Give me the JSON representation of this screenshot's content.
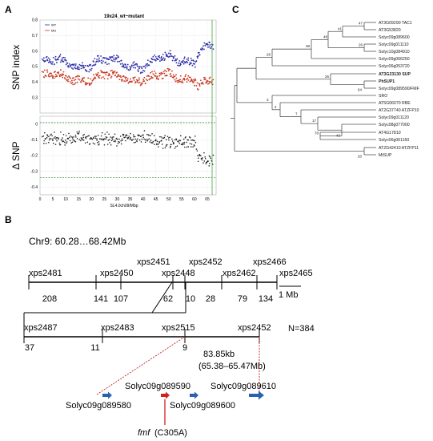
{
  "panels": {
    "a": "A",
    "b": "B",
    "c": "C"
  },
  "chart_data": {
    "type": "scatter",
    "title": "19x24_wt~mutant",
    "xlabel": "SL4.0ch09/Mbp",
    "xlim": [
      0,
      68.42
    ],
    "x_ticks": [
      "0",
      "5",
      "10",
      "15",
      "20",
      "25",
      "30",
      "35",
      "40",
      "45",
      "50",
      "55",
      "60",
      "65"
    ],
    "top": {
      "ylabel": "SNP index",
      "ylim": [
        0.2,
        0.8
      ],
      "y_ticks": [
        "0.8",
        "0.7",
        "0.6",
        "0.5",
        "0.4",
        "0.3"
      ],
      "legend": [
        "WT",
        "MU"
      ],
      "series_colors": [
        "#2a2aa8",
        "#c8341e"
      ]
    },
    "bottom": {
      "ylabel": "Δ SNP",
      "ylim": [
        -0.45,
        0.05
      ],
      "y_ticks": [
        "0",
        "-0.1",
        "-0.2",
        "-0.3",
        "-0.4"
      ],
      "threshold_lines": [
        0.01,
        -0.34
      ]
    }
  },
  "map": {
    "chr_label": "Chr9: 60.28…68.42Mb",
    "row1_markers": [
      "xps2481",
      "xps2450",
      "xps2451",
      "xps2448",
      "xps2452",
      "xps2462",
      "xps2466",
      "xps2465"
    ],
    "row1_counts": [
      "208",
      "141",
      "107",
      "62",
      "10",
      "28",
      "79",
      "134"
    ],
    "scale": "1 Mb",
    "row2_markers": [
      "xps2487",
      "xps2483",
      "xps2515",
      "xps2452"
    ],
    "row2_counts": [
      "37",
      "11",
      "9"
    ],
    "n_label": "N=384",
    "interval_kb": "83.85kb",
    "interval_mb": "(65.38–65.47Mb)",
    "genes": [
      "Solyc09g089580",
      "Solyc09g089590",
      "Solyc09g089600",
      "Solyc09g089610"
    ],
    "fmf_label": "fmf",
    "fmf_mutation": "(C305A)",
    "colors": {
      "arrow": "#2a62b0",
      "fmf": "#d22020",
      "guide": "#c0202a"
    }
  },
  "tree": {
    "leaves": [
      {
        "name": "AT3G09290_TAC1",
        "label": "AT3G09290 TAC1",
        "style": "normal"
      },
      {
        "name": "AT3G53820",
        "label": "AT3G53820",
        "style": "normal"
      },
      {
        "name": "Solyc09g089600",
        "label": "Solyc09g089600",
        "style": "normal"
      },
      {
        "name": "Solyc09g011110",
        "label": "Solyc09g011110",
        "style": "normal"
      },
      {
        "name": "Solyc10g084910",
        "label": "Solyc10g084910",
        "style": "normal"
      },
      {
        "name": "Solyc09g066250",
        "label": "Solyc09g066250",
        "style": "normal"
      },
      {
        "name": "Solyc06g053720",
        "label": "Solyc06g053720",
        "style": "normal"
      },
      {
        "name": "AT3G23130_SUP",
        "label": "AT3G23130  SUP",
        "style": "bold"
      },
      {
        "name": "PhSUP1",
        "label": "PhSUP1",
        "style": "bold"
      },
      {
        "name": "Solyc09g089590_FMF",
        "label": "Solyc09g089590/FMF",
        "style": "red"
      },
      {
        "name": "SRO",
        "label": "SRO",
        "style": "normal"
      },
      {
        "name": "AT5G06070_RBE",
        "label": "AT5G06070  RBE",
        "style": "normal"
      },
      {
        "name": "AT2G37740_ATZFP10",
        "label": "AT2G37740  ATZFP10",
        "style": "normal"
      },
      {
        "name": "Solyc09g011120",
        "label": "Solyc09g011120",
        "style": "normal"
      },
      {
        "name": "Solyc08g077000",
        "label": "Solyc08g077000",
        "style": "normal"
      },
      {
        "name": "AT4G17810",
        "label": "AT4G17810",
        "style": "normal"
      },
      {
        "name": "Solyc06g061160",
        "label": "Solyc06g061160",
        "style": "normal"
      },
      {
        "name": "AT2G42410_ATZFP11",
        "label": "AT2G42410  ATZFP11",
        "style": "normal"
      },
      {
        "name": "MtSUP",
        "label": "MtSUP",
        "style": "normal"
      }
    ],
    "bootstraps": [
      "47",
      "41",
      "26",
      "48",
      "38",
      "28",
      "3",
      "26",
      "64",
      "2",
      "7",
      "17",
      "78",
      "42",
      "20"
    ],
    "colors": {
      "fmf": "#d0453a",
      "line": "#555555"
    }
  }
}
